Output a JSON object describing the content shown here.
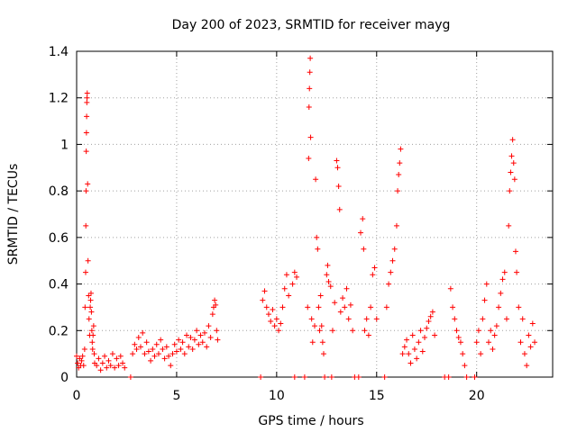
{
  "chart_data": {
    "type": "scatter",
    "title": "Day 200 of 2023, SRMTID for receiver mayg",
    "xlabel": "GPS time / hours",
    "ylabel": "SRMTID / TECUs",
    "xlim": [
      0,
      23.8
    ],
    "ylim": [
      0,
      1.4
    ],
    "x_ticks": [
      0,
      5,
      10,
      15,
      20
    ],
    "x_tick_labels": [
      "0",
      "5",
      "10",
      "15",
      "20"
    ],
    "y_ticks": [
      0,
      0.2,
      0.4,
      0.6,
      0.8,
      1.0,
      1.2,
      1.4
    ],
    "y_tick_labels": [
      "0",
      "0.2",
      "0.4",
      "0.6",
      "0.8",
      "1",
      "1.2",
      "1.4"
    ],
    "grid": true,
    "marker": "plus",
    "color": "#ff0000",
    "series": [
      {
        "name": "SRMTID",
        "points": [
          [
            0.0,
            0.09
          ],
          [
            0.05,
            0.06
          ],
          [
            0.1,
            0.04
          ],
          [
            0.15,
            0.08
          ],
          [
            0.2,
            0.05
          ],
          [
            0.25,
            0.07
          ],
          [
            0.3,
            0.09
          ],
          [
            0.35,
            0.05
          ],
          [
            0.4,
            0.12
          ],
          [
            0.42,
            0.3
          ],
          [
            0.45,
            0.45
          ],
          [
            0.46,
            0.65
          ],
          [
            0.47,
            0.8
          ],
          [
            0.48,
            0.97
          ],
          [
            0.49,
            1.05
          ],
          [
            0.5,
            1.12
          ],
          [
            0.51,
            1.18
          ],
          [
            0.52,
            1.2
          ],
          [
            0.53,
            1.22
          ],
          [
            0.55,
            0.83
          ],
          [
            0.57,
            0.5
          ],
          [
            0.6,
            0.35
          ],
          [
            0.62,
            0.25
          ],
          [
            0.65,
            0.18
          ],
          [
            0.68,
            0.3
          ],
          [
            0.7,
            0.33
          ],
          [
            0.72,
            0.36
          ],
          [
            0.74,
            0.28
          ],
          [
            0.76,
            0.2
          ],
          [
            0.78,
            0.15
          ],
          [
            0.8,
            0.12
          ],
          [
            0.82,
            0.18
          ],
          [
            0.85,
            0.22
          ],
          [
            0.88,
            0.1
          ],
          [
            0.9,
            0.06
          ],
          [
            1.0,
            0.05
          ],
          [
            1.1,
            0.08
          ],
          [
            1.2,
            0.03
          ],
          [
            1.3,
            0.06
          ],
          [
            1.4,
            0.09
          ],
          [
            1.5,
            0.04
          ],
          [
            1.6,
            0.07
          ],
          [
            1.7,
            0.05
          ],
          [
            1.8,
            0.1
          ],
          [
            1.9,
            0.04
          ],
          [
            2.0,
            0.08
          ],
          [
            2.1,
            0.05
          ],
          [
            2.2,
            0.09
          ],
          [
            2.3,
            0.06
          ],
          [
            2.4,
            0.04
          ],
          [
            2.7,
            0.0
          ],
          [
            2.8,
            0.1
          ],
          [
            2.9,
            0.14
          ],
          [
            3.0,
            0.12
          ],
          [
            3.1,
            0.17
          ],
          [
            3.2,
            0.13
          ],
          [
            3.3,
            0.19
          ],
          [
            3.4,
            0.1
          ],
          [
            3.5,
            0.15
          ],
          [
            3.6,
            0.11
          ],
          [
            3.7,
            0.07
          ],
          [
            3.8,
            0.12
          ],
          [
            3.9,
            0.09
          ],
          [
            4.0,
            0.14
          ],
          [
            4.1,
            0.1
          ],
          [
            4.2,
            0.16
          ],
          [
            4.3,
            0.12
          ],
          [
            4.4,
            0.08
          ],
          [
            4.5,
            0.13
          ],
          [
            4.6,
            0.09
          ],
          [
            4.7,
            0.05
          ],
          [
            4.8,
            0.1
          ],
          [
            4.9,
            0.14
          ],
          [
            5.0,
            0.11
          ],
          [
            5.1,
            0.16
          ],
          [
            5.2,
            0.12
          ],
          [
            5.3,
            0.15
          ],
          [
            5.4,
            0.1
          ],
          [
            5.5,
            0.18
          ],
          [
            5.6,
            0.13
          ],
          [
            5.7,
            0.17
          ],
          [
            5.8,
            0.12
          ],
          [
            5.9,
            0.16
          ],
          [
            6.0,
            0.2
          ],
          [
            6.1,
            0.14
          ],
          [
            6.2,
            0.18
          ],
          [
            6.3,
            0.15
          ],
          [
            6.4,
            0.19
          ],
          [
            6.5,
            0.13
          ],
          [
            6.6,
            0.22
          ],
          [
            6.7,
            0.17
          ],
          [
            6.8,
            0.27
          ],
          [
            6.85,
            0.3
          ],
          [
            6.9,
            0.33
          ],
          [
            6.95,
            0.31
          ],
          [
            7.0,
            0.2
          ],
          [
            7.05,
            0.16
          ],
          [
            9.2,
            0.0
          ],
          [
            9.3,
            0.33
          ],
          [
            9.4,
            0.37
          ],
          [
            9.5,
            0.3
          ],
          [
            9.6,
            0.27
          ],
          [
            9.7,
            0.24
          ],
          [
            9.8,
            0.29
          ],
          [
            9.9,
            0.22
          ],
          [
            10.0,
            0.25
          ],
          [
            10.1,
            0.2
          ],
          [
            10.2,
            0.23
          ],
          [
            10.3,
            0.3
          ],
          [
            10.4,
            0.38
          ],
          [
            10.5,
            0.44
          ],
          [
            10.6,
            0.35
          ],
          [
            10.8,
            0.4
          ],
          [
            10.9,
            0.45
          ],
          [
            11.0,
            0.43
          ],
          [
            10.9,
            0.0
          ],
          [
            11.4,
            0.0
          ],
          [
            11.55,
            0.3
          ],
          [
            11.6,
            0.94
          ],
          [
            11.62,
            1.16
          ],
          [
            11.64,
            1.24
          ],
          [
            11.66,
            1.31
          ],
          [
            11.68,
            1.37
          ],
          [
            11.7,
            1.03
          ],
          [
            11.75,
            0.25
          ],
          [
            11.8,
            0.15
          ],
          [
            11.9,
            0.22
          ],
          [
            11.95,
            0.85
          ],
          [
            12.0,
            0.6
          ],
          [
            12.05,
            0.55
          ],
          [
            12.1,
            0.3
          ],
          [
            12.15,
            0.2
          ],
          [
            12.2,
            0.35
          ],
          [
            12.25,
            0.22
          ],
          [
            12.3,
            0.15
          ],
          [
            12.35,
            0.1
          ],
          [
            12.4,
            0.0
          ],
          [
            12.5,
            0.44
          ],
          [
            12.55,
            0.48
          ],
          [
            12.6,
            0.41
          ],
          [
            12.7,
            0.39
          ],
          [
            12.75,
            0.0
          ],
          [
            12.8,
            0.2
          ],
          [
            12.9,
            0.32
          ],
          [
            13.0,
            0.93
          ],
          [
            13.05,
            0.9
          ],
          [
            13.1,
            0.82
          ],
          [
            13.15,
            0.72
          ],
          [
            13.2,
            0.28
          ],
          [
            13.3,
            0.34
          ],
          [
            13.4,
            0.3
          ],
          [
            13.5,
            0.38
          ],
          [
            13.6,
            0.25
          ],
          [
            13.7,
            0.31
          ],
          [
            13.8,
            0.2
          ],
          [
            13.9,
            0.0
          ],
          [
            14.1,
            0.0
          ],
          [
            14.2,
            0.62
          ],
          [
            14.3,
            0.68
          ],
          [
            14.35,
            0.55
          ],
          [
            14.4,
            0.2
          ],
          [
            14.5,
            0.25
          ],
          [
            14.6,
            0.18
          ],
          [
            14.7,
            0.3
          ],
          [
            14.8,
            0.44
          ],
          [
            14.9,
            0.47
          ],
          [
            15.0,
            0.25
          ],
          [
            15.4,
            0.0
          ],
          [
            15.5,
            0.3
          ],
          [
            15.6,
            0.4
          ],
          [
            15.7,
            0.45
          ],
          [
            15.8,
            0.5
          ],
          [
            15.9,
            0.55
          ],
          [
            16.0,
            0.65
          ],
          [
            16.05,
            0.8
          ],
          [
            16.1,
            0.87
          ],
          [
            16.15,
            0.92
          ],
          [
            16.2,
            0.98
          ],
          [
            16.3,
            0.1
          ],
          [
            16.4,
            0.13
          ],
          [
            16.5,
            0.16
          ],
          [
            16.6,
            0.1
          ],
          [
            16.7,
            0.06
          ],
          [
            16.8,
            0.18
          ],
          [
            16.9,
            0.12
          ],
          [
            17.0,
            0.08
          ],
          [
            17.1,
            0.15
          ],
          [
            17.2,
            0.2
          ],
          [
            17.3,
            0.11
          ],
          [
            17.4,
            0.17
          ],
          [
            17.5,
            0.21
          ],
          [
            17.6,
            0.24
          ],
          [
            17.7,
            0.26
          ],
          [
            17.8,
            0.28
          ],
          [
            17.9,
            0.18
          ],
          [
            18.4,
            0.0
          ],
          [
            18.6,
            0.0
          ],
          [
            18.7,
            0.38
          ],
          [
            18.8,
            0.3
          ],
          [
            18.9,
            0.25
          ],
          [
            19.0,
            0.2
          ],
          [
            19.1,
            0.17
          ],
          [
            19.2,
            0.15
          ],
          [
            19.3,
            0.1
          ],
          [
            19.4,
            0.05
          ],
          [
            19.5,
            0.0
          ],
          [
            19.9,
            0.0
          ],
          [
            20.0,
            0.15
          ],
          [
            20.1,
            0.2
          ],
          [
            20.2,
            0.1
          ],
          [
            20.3,
            0.25
          ],
          [
            20.4,
            0.33
          ],
          [
            20.5,
            0.4
          ],
          [
            20.6,
            0.15
          ],
          [
            20.7,
            0.2
          ],
          [
            20.8,
            0.12
          ],
          [
            20.9,
            0.18
          ],
          [
            21.0,
            0.22
          ],
          [
            21.1,
            0.3
          ],
          [
            21.2,
            0.36
          ],
          [
            21.3,
            0.42
          ],
          [
            21.4,
            0.45
          ],
          [
            21.5,
            0.25
          ],
          [
            21.6,
            0.65
          ],
          [
            21.65,
            0.8
          ],
          [
            21.7,
            0.88
          ],
          [
            21.75,
            0.95
          ],
          [
            21.8,
            1.02
          ],
          [
            21.85,
            0.92
          ],
          [
            21.9,
            0.85
          ],
          [
            21.95,
            0.54
          ],
          [
            22.0,
            0.45
          ],
          [
            22.1,
            0.3
          ],
          [
            22.2,
            0.15
          ],
          [
            22.3,
            0.25
          ],
          [
            22.4,
            0.1
          ],
          [
            22.5,
            0.05
          ],
          [
            22.6,
            0.18
          ],
          [
            22.7,
            0.13
          ],
          [
            22.8,
            0.23
          ],
          [
            22.9,
            0.15
          ]
        ]
      }
    ]
  }
}
